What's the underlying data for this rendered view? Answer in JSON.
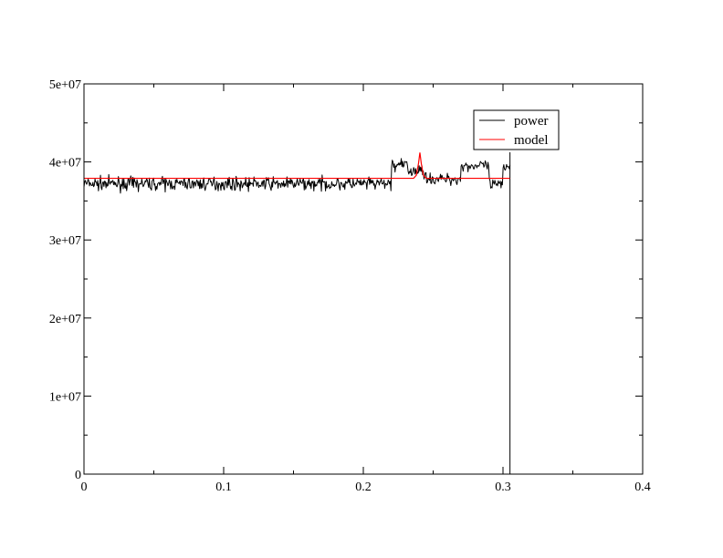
{
  "chart_data": {
    "type": "line",
    "title": "",
    "xlabel": "",
    "ylabel": "",
    "xlim": [
      0,
      0.4
    ],
    "ylim": [
      0,
      50000000
    ],
    "x_ticks": [
      0,
      0.1,
      0.2,
      0.3,
      0.4
    ],
    "x_tick_labels": [
      "0",
      "0.1",
      "0.2",
      "0.3",
      "0.4"
    ],
    "y_ticks": [
      0,
      10000000,
      20000000,
      30000000,
      40000000,
      50000000
    ],
    "y_tick_labels": [
      "0",
      "1e+07",
      "2e+07",
      "3e+07",
      "4e+07",
      "5e+07"
    ],
    "grid": false,
    "legend_position": "top-right",
    "series": [
      {
        "name": "power",
        "color": "#000000",
        "x_start": 0,
        "x_end": 0.305,
        "n_points": 620,
        "segments": [
          {
            "x": [
              0,
              0.22
            ],
            "mean": 37200000,
            "noise": 900000
          },
          {
            "x": [
              0.22,
              0.232
            ],
            "mean": 39600000,
            "noise": 800000
          },
          {
            "x": [
              0.232,
              0.245
            ],
            "mean": 38800000,
            "noise": 900000
          },
          {
            "x": [
              0.245,
              0.27
            ],
            "mean": 37800000,
            "noise": 800000
          },
          {
            "x": [
              0.27,
              0.29
            ],
            "mean": 39500000,
            "noise": 800000
          },
          {
            "x": [
              0.29,
              0.3
            ],
            "mean": 37000000,
            "noise": 900000
          },
          {
            "x": [
              0.3,
              0.305
            ],
            "mean": 39500000,
            "noise": 800000
          }
        ],
        "peak_x": 0.305,
        "peak_y": 41200000,
        "drop_to": 0
      },
      {
        "name": "model",
        "color": "#ff0000",
        "points": [
          [
            0,
            37900000
          ],
          [
            0.236,
            37900000
          ],
          [
            0.238,
            38300000
          ],
          [
            0.2395,
            39800000
          ],
          [
            0.2405,
            41200000
          ],
          [
            0.2415,
            39800000
          ],
          [
            0.243,
            38300000
          ],
          [
            0.245,
            37900000
          ],
          [
            0.305,
            37900000
          ]
        ]
      }
    ]
  }
}
